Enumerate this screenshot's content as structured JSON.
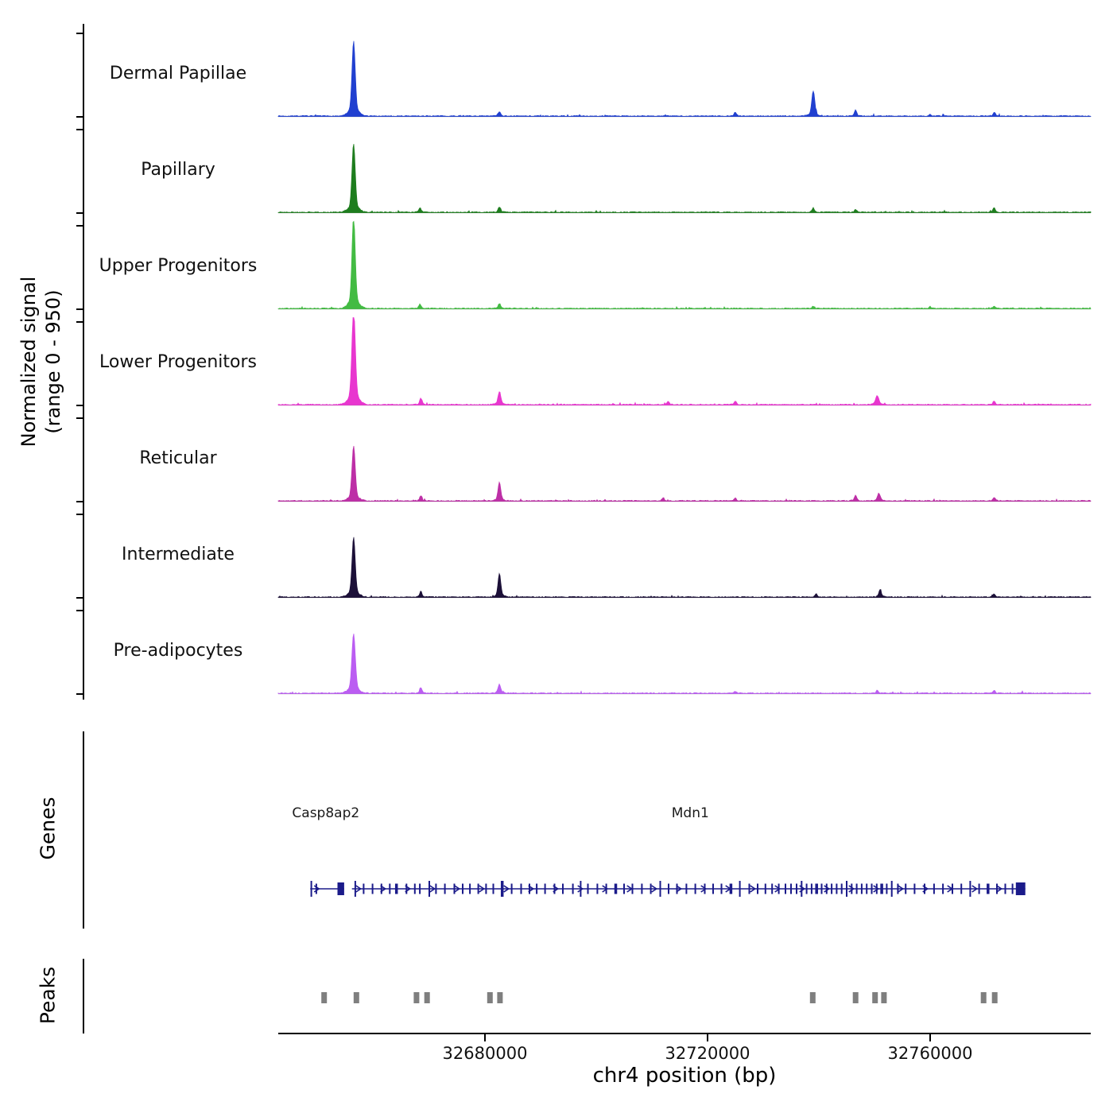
{
  "figure": {
    "ylabel_line1": "Normalized signal",
    "ylabel_line2": "(range 0 - 950)",
    "genes_label": "Genes",
    "peaks_label": "Peaks",
    "xlabel": "chr4 position (bp)"
  },
  "chart_data": {
    "type": "area",
    "description": "Genome browser style normalized ATAC/ChIP signal tracks over chr4 with gene models and called peaks",
    "x_domain": [
      32642857,
      32788857
    ],
    "x_ticks": [
      {
        "value": 32680000,
        "label": "32680000"
      },
      {
        "value": 32720000,
        "label": "32720000"
      },
      {
        "value": 32760000,
        "label": "32760000"
      }
    ],
    "y_range": [
      0,
      950
    ],
    "peaks_format": "[bp_position, signal_height_0_950, sigma_bp]",
    "tracks": [
      {
        "label": "Dermal Papillae",
        "color": "#2140d0",
        "seed": 7,
        "peaks": [
          [
            32656400,
            740,
            280
          ],
          [
            32682600,
            45,
            220
          ],
          [
            32725000,
            38,
            220
          ],
          [
            32739000,
            250,
            260
          ],
          [
            32746600,
            60,
            200
          ],
          [
            32760000,
            15,
            200
          ],
          [
            32771500,
            38,
            200
          ]
        ]
      },
      {
        "label": "Papillary",
        "color": "#1e7d1e",
        "seed": 8,
        "peaks": [
          [
            32656400,
            680,
            280
          ],
          [
            32668300,
            45,
            200
          ],
          [
            32682600,
            55,
            220
          ],
          [
            32739000,
            42,
            200
          ],
          [
            32746600,
            28,
            200
          ],
          [
            32771500,
            40,
            200
          ]
        ]
      },
      {
        "label": "Upper Progenitors",
        "color": "#43bb43",
        "seed": 9,
        "peaks": [
          [
            32656400,
            920,
            280
          ],
          [
            32668300,
            42,
            200
          ],
          [
            32682600,
            48,
            220
          ],
          [
            32739000,
            25,
            200
          ],
          [
            32760000,
            18,
            200
          ],
          [
            32771500,
            25,
            200
          ]
        ]
      },
      {
        "label": "Lower Progenitors",
        "color": "#e836cf",
        "seed": 10,
        "peaks": [
          [
            32656400,
            950,
            300
          ],
          [
            32668500,
            62,
            220
          ],
          [
            32682600,
            130,
            240
          ],
          [
            32712900,
            32,
            200
          ],
          [
            32725000,
            32,
            200
          ],
          [
            32750500,
            88,
            280
          ],
          [
            32771500,
            35,
            200
          ]
        ]
      },
      {
        "label": "Reticular",
        "color": "#bd2fa6",
        "seed": 11,
        "peaks": [
          [
            32656400,
            545,
            280
          ],
          [
            32668500,
            55,
            200
          ],
          [
            32682600,
            185,
            240
          ],
          [
            32712000,
            25,
            200
          ],
          [
            32725000,
            25,
            200
          ],
          [
            32746600,
            58,
            200
          ],
          [
            32750800,
            75,
            240
          ],
          [
            32771500,
            35,
            200
          ]
        ]
      },
      {
        "label": "Intermediate",
        "color": "#1c1038",
        "seed": 12,
        "peaks": [
          [
            32656400,
            590,
            280
          ],
          [
            32668500,
            52,
            200
          ],
          [
            32682600,
            235,
            240
          ],
          [
            32739500,
            30,
            200
          ],
          [
            32751000,
            68,
            240
          ],
          [
            32771500,
            32,
            200
          ]
        ]
      },
      {
        "label": "Pre-adipocytes",
        "color": "#bb5df2",
        "seed": 13,
        "peaks": [
          [
            32656400,
            590,
            300
          ],
          [
            32668500,
            52,
            200
          ],
          [
            32682600,
            88,
            240
          ],
          [
            32725000,
            20,
            200
          ],
          [
            32750500,
            30,
            200
          ],
          [
            32771500,
            25,
            200
          ]
        ]
      }
    ],
    "gene_color": "#1b1b8a",
    "genes": [
      {
        "name": "Casp8ap2",
        "label_pos": 32651400,
        "start": 32648600,
        "end": 32654700,
        "strand": "+",
        "exons": [
          32648800,
          32649700
        ],
        "end_box": [
          32653500,
          32654700
        ]
      },
      {
        "name": "Mdn1",
        "label_pos": 32716900,
        "start": 32656100,
        "end": 32777100,
        "strand": "+",
        "exons": [
          32656700,
          32658200,
          32659800,
          32661400,
          32662900,
          32664100,
          32665900,
          32667400,
          32668300,
          32670000,
          32671200,
          32672800,
          32674500,
          32676000,
          32677300,
          32678800,
          32680200,
          32681500,
          32683100,
          32684800,
          32686500,
          32688000,
          32689300,
          32690800,
          32692500,
          32694000,
          32695800,
          32697200,
          32698500,
          32700200,
          32701800,
          32703500,
          32705000,
          32706500,
          32708200,
          32709800,
          32711500,
          32713000,
          32714500,
          32716200,
          32717800,
          32719500,
          32721000,
          32722500,
          32724200,
          32725800,
          32727500,
          32729000,
          32730400,
          32731600,
          32732800,
          32734000,
          32735000,
          32736000,
          32736900,
          32737800,
          32738700,
          32739600,
          32740500,
          32741400,
          32742300,
          32743200,
          32744100,
          32745000,
          32745900,
          32746800,
          32747700,
          32748600,
          32749500,
          32750400,
          32751300,
          32752200,
          32753100,
          32754200,
          32755600,
          32757200,
          32759000,
          32760700,
          32762300,
          32764000,
          32765600,
          32767200,
          32768800,
          32770400,
          32772000,
          32773500,
          32774800,
          32775900
        ],
        "end_box": [
          32775400,
          32777100
        ]
      }
    ],
    "peak_boxes": {
      "color": "#7f7f7f",
      "width_bp": 1000,
      "positions": [
        32651100,
        32656900,
        32667700,
        32669600,
        32680900,
        32682700,
        32738900,
        32746600,
        32750100,
        32751700,
        32769600,
        32771600
      ]
    }
  }
}
